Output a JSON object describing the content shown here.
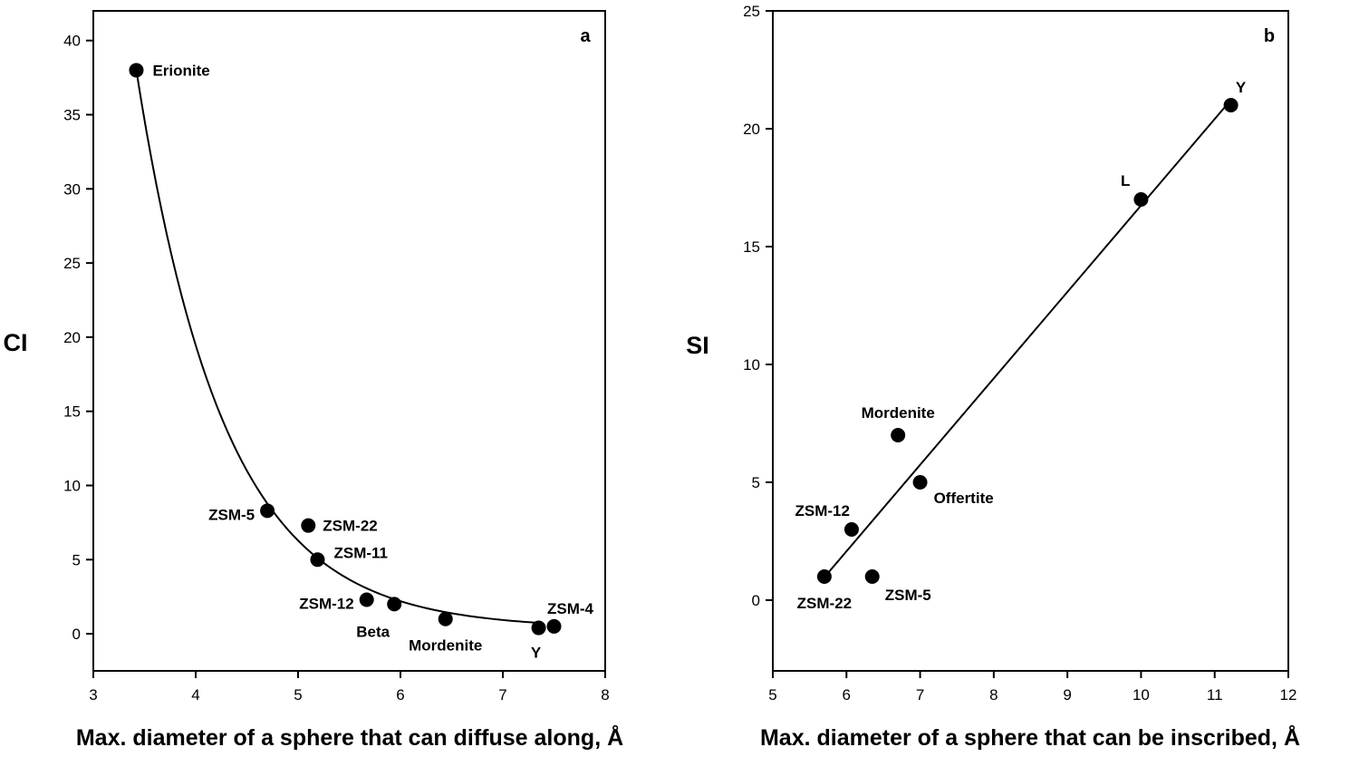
{
  "chart_data": [
    {
      "type": "scatter",
      "panel_label": "a",
      "xlabel": "Max. diameter of a sphere that can diffuse along, Å",
      "ylabel": "CI",
      "xlim": [
        3,
        8
      ],
      "ylim": [
        -2.5,
        42
      ],
      "xticks": [
        3,
        4,
        5,
        6,
        7,
        8
      ],
      "yticks": [
        0,
        5,
        10,
        15,
        20,
        25,
        30,
        35,
        40
      ],
      "grid": false,
      "points": [
        {
          "label": "Erionite",
          "x": 3.42,
          "y": 38.0
        },
        {
          "label": "ZSM-5",
          "x": 4.7,
          "y": 8.3
        },
        {
          "label": "ZSM-22",
          "x": 5.1,
          "y": 7.3
        },
        {
          "label": "ZSM-11",
          "x": 5.19,
          "y": 5.0
        },
        {
          "label": "ZSM-12",
          "x": 5.67,
          "y": 2.3
        },
        {
          "label": "Beta",
          "x": 5.94,
          "y": 2.0
        },
        {
          "label": "Mordenite",
          "x": 6.44,
          "y": 1.0
        },
        {
          "label": "Y",
          "x": 7.35,
          "y": 0.4
        },
        {
          "label": "ZSM-4",
          "x": 7.5,
          "y": 0.5
        }
      ],
      "fit": {
        "type": "exponential",
        "x_range": [
          3.42,
          7.35
        ]
      }
    },
    {
      "type": "scatter",
      "panel_label": "b",
      "xlabel": "Max. diameter of a sphere that can be inscribed, Å",
      "ylabel": "SI",
      "xlim": [
        5,
        12
      ],
      "ylim": [
        -3,
        25
      ],
      "xticks": [
        5,
        6,
        7,
        8,
        9,
        10,
        11,
        12
      ],
      "yticks": [
        0,
        5,
        10,
        15,
        20,
        25
      ],
      "grid": false,
      "points": [
        {
          "label": "ZSM-22",
          "x": 5.7,
          "y": 1
        },
        {
          "label": "ZSM-12",
          "x": 6.07,
          "y": 3
        },
        {
          "label": "ZSM-5",
          "x": 6.35,
          "y": 1
        },
        {
          "label": "Mordenite",
          "x": 6.7,
          "y": 7
        },
        {
          "label": "Offertite",
          "x": 7.0,
          "y": 5
        },
        {
          "label": "L",
          "x": 10.0,
          "y": 17
        },
        {
          "label": "Y",
          "x": 11.22,
          "y": 21
        }
      ],
      "fit": {
        "type": "linear",
        "x_range": [
          5.7,
          11.22
        ]
      }
    }
  ]
}
